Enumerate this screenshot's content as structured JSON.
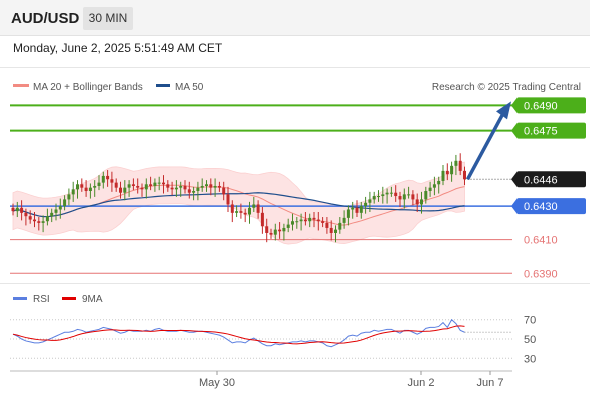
{
  "header": {
    "symbol": "AUD/USD",
    "timeframe": "30 MIN"
  },
  "datetime": "Monday, June 2, 2025 5:51:49 AM CET",
  "legend": {
    "bb_label": "MA 20 + Bollinger Bands",
    "ma50_label": "MA 50",
    "copyright": "Research © 2025 Trading Central",
    "rsi_label": "RSI",
    "rsi_ma_label": "9MA"
  },
  "colors": {
    "bb_color": "#f28b82",
    "ma50_color": "#1f4e8c",
    "resistance_color": "#4caf1a",
    "support_color": "#3b6fe0",
    "lower_color": "#e57373",
    "rsi_color": "#5b7fe0",
    "rsi_ma_color": "#e00000",
    "up_candle": "#4a8a2a",
    "down_candle": "#c42b2b",
    "arrow_color": "#2c5aa0"
  },
  "price_levels": [
    {
      "value": "0.6490",
      "kind": "resistance"
    },
    {
      "value": "0.6475",
      "kind": "resistance"
    },
    {
      "value": "0.6446",
      "kind": "current"
    },
    {
      "value": "0.6430",
      "kind": "support"
    },
    {
      "value": "0.6410",
      "kind": "lower"
    },
    {
      "value": "0.6390",
      "kind": "lower"
    }
  ],
  "rsi_axis": [
    "70",
    "50",
    "30"
  ],
  "time_axis": [
    "May 30",
    "Jun 2",
    "Jun 7"
  ],
  "chart_data": {
    "type": "line",
    "price_range": [
      0.6383,
      0.6498
    ],
    "rsi_range": [
      22,
      78
    ],
    "closes": [
      0.6427,
      0.6429,
      0.6426,
      0.6424,
      0.6422,
      0.6421,
      0.642,
      0.6421,
      0.6424,
      0.6426,
      0.6428,
      0.643,
      0.6434,
      0.6437,
      0.644,
      0.6443,
      0.6441,
      0.6439,
      0.6441,
      0.6442,
      0.6444,
      0.6448,
      0.6446,
      0.6444,
      0.6441,
      0.6438,
      0.6441,
      0.6443,
      0.6442,
      0.6441,
      0.644,
      0.6443,
      0.6442,
      0.6444,
      0.6444,
      0.6443,
      0.6441,
      0.644,
      0.6441,
      0.6442,
      0.644,
      0.6438,
      0.6439,
      0.6441,
      0.6442,
      0.6443,
      0.6441,
      0.6442,
      0.6441,
      0.6437,
      0.6431,
      0.6426,
      0.6427,
      0.6426,
      0.6425,
      0.6429,
      0.6431,
      0.6426,
      0.6418,
      0.6414,
      0.6413,
      0.6416,
      0.6415,
      0.6417,
      0.6419,
      0.6421,
      0.6421,
      0.6422,
      0.6421,
      0.6423,
      0.6422,
      0.6421,
      0.642,
      0.6417,
      0.6414,
      0.6416,
      0.642,
      0.6423,
      0.6428,
      0.6429,
      0.6426,
      0.643,
      0.6432,
      0.6434,
      0.6436,
      0.6436,
      0.6437,
      0.6438,
      0.6438,
      0.6436,
      0.6434,
      0.6437,
      0.6437,
      0.6434,
      0.6431,
      0.6434,
      0.6439,
      0.6441,
      0.6443,
      0.6445,
      0.6451,
      0.6449,
      0.6454,
      0.6457,
      0.6451,
      0.6446
    ],
    "rsi": [
      55,
      53,
      50,
      48,
      47,
      46,
      46,
      47,
      49,
      51,
      53,
      55,
      57,
      57,
      58,
      60,
      59,
      57,
      58,
      59,
      60,
      62,
      61,
      60,
      58,
      56,
      57,
      59,
      58,
      58,
      58,
      59,
      58,
      60,
      61,
      59,
      58,
      58,
      58,
      59,
      58,
      57,
      57,
      58,
      58,
      57,
      56,
      55,
      54,
      52,
      49,
      46,
      47,
      47,
      46,
      49,
      51,
      48,
      45,
      43,
      43,
      45,
      44,
      45,
      46,
      47,
      47,
      48,
      47,
      48,
      48,
      47,
      46,
      43,
      42,
      44,
      46,
      49,
      53,
      54,
      53,
      56,
      57,
      57,
      59,
      58,
      59,
      60,
      60,
      58,
      56,
      59,
      59,
      57,
      55,
      57,
      61,
      62,
      62,
      63,
      67,
      62,
      70,
      66,
      59,
      57
    ],
    "x_ticks": [
      "May 30",
      "Jun 2",
      "Jun 7"
    ],
    "y_ticks": [
      "0.6490",
      "0.6475",
      "0.6446",
      "0.6430",
      "0.6410",
      "0.6390"
    ],
    "series": [
      {
        "name": "MA 20 + Bollinger Bands"
      },
      {
        "name": "MA 50"
      },
      {
        "name": "RSI"
      },
      {
        "name": "9MA"
      }
    ]
  }
}
